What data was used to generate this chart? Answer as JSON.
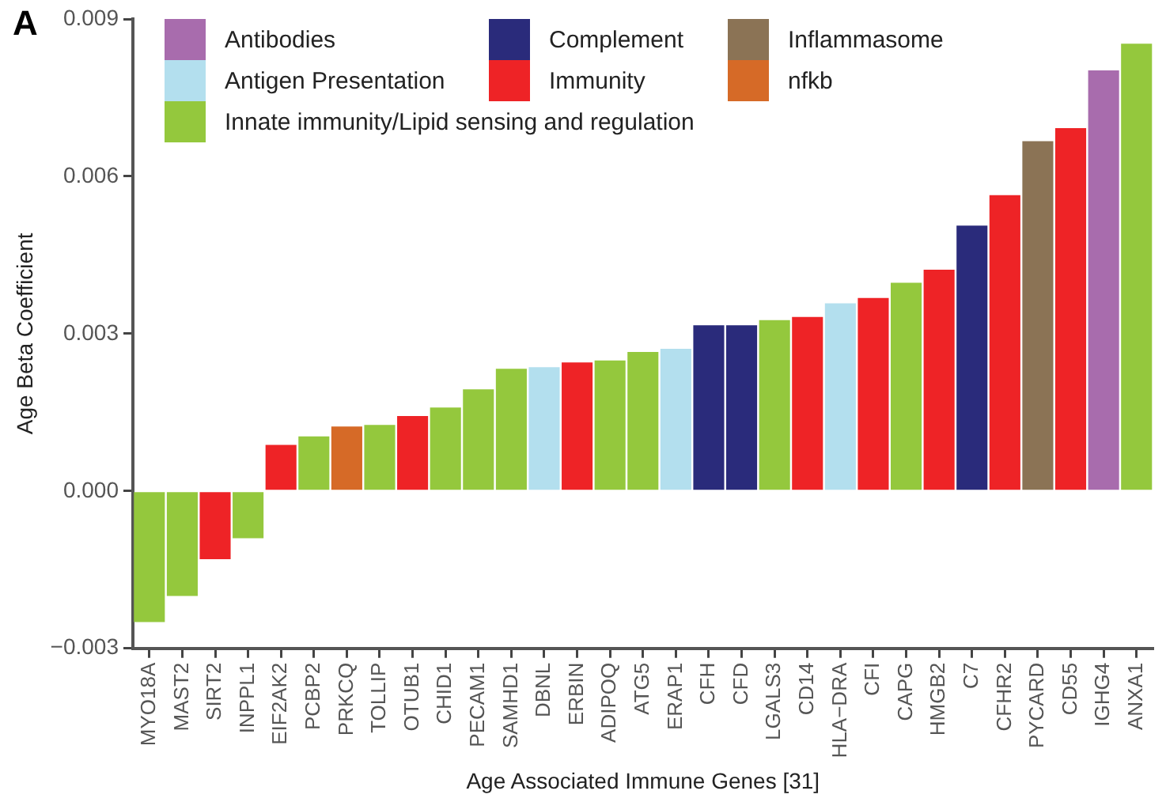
{
  "chart_data": {
    "type": "bar",
    "xlabel": "Age Associated Immune Genes [31]",
    "ylabel": "Age Beta Coefficient",
    "annotations": [
      "A"
    ],
    "categories": [
      "MYO18A",
      "MAST2",
      "SIRT2",
      "INPPL1",
      "EIF2AK2",
      "PCBP2",
      "PRKCQ",
      "TOLLIP",
      "OTUB1",
      "CHID1",
      "PECAM1",
      "SAMHD1",
      "DBNL",
      "ERBIN",
      "ADIPOQ",
      "ATG5",
      "ERAP1",
      "CFH",
      "CFD",
      "LGALS3",
      "CD14",
      "HLA−DRA",
      "CFI",
      "CAPG",
      "HMGB2",
      "C7",
      "CFHR2",
      "PYCARD",
      "CD55",
      "IGHG4",
      "ANXA1"
    ],
    "series": [
      {
        "name": "Antibodies",
        "color": "#a86cad",
        "values": [
          null,
          null,
          null,
          null,
          null,
          null,
          null,
          null,
          null,
          null,
          null,
          null,
          null,
          null,
          null,
          null,
          null,
          null,
          null,
          null,
          null,
          null,
          null,
          null,
          null,
          null,
          null,
          null,
          null,
          0.00802,
          null
        ]
      },
      {
        "name": "Antigen Presentation",
        "color": "#b3dfee",
        "values": [
          null,
          null,
          null,
          null,
          null,
          null,
          null,
          null,
          null,
          null,
          null,
          null,
          0.00236,
          null,
          null,
          null,
          0.00271,
          null,
          null,
          null,
          null,
          0.00358,
          null,
          null,
          null,
          null,
          null,
          null,
          null,
          null,
          null
        ]
      },
      {
        "name": "Innate immunity/Lipid sensing and regulation",
        "color": "#94c83d",
        "values": [
          -0.0025,
          -0.002,
          null,
          -0.0009,
          null,
          0.00104,
          null,
          0.00126,
          null,
          0.00159,
          0.00194,
          0.00233,
          null,
          null,
          0.00249,
          0.00265,
          null,
          null,
          null,
          0.00326,
          null,
          null,
          null,
          0.00397,
          null,
          null,
          null,
          null,
          null,
          null,
          0.00853
        ]
      },
      {
        "name": "Complement",
        "color": "#2a2b7b",
        "values": [
          null,
          null,
          null,
          null,
          null,
          null,
          null,
          null,
          null,
          null,
          null,
          null,
          null,
          null,
          null,
          null,
          null,
          0.00316,
          0.00316,
          null,
          null,
          null,
          null,
          null,
          null,
          0.00506,
          null,
          null,
          null,
          null,
          null
        ]
      },
      {
        "name": "Immunity",
        "color": "#ee2326",
        "values": [
          null,
          null,
          -0.0013,
          null,
          0.00088,
          null,
          null,
          null,
          0.00143,
          null,
          null,
          null,
          null,
          0.00245,
          null,
          null,
          null,
          null,
          null,
          null,
          0.00332,
          null,
          0.00368,
          null,
          0.00422,
          null,
          0.00564,
          null,
          0.00692,
          null,
          null
        ]
      },
      {
        "name": "Inflammasome",
        "color": "#8b7355",
        "values": [
          null,
          null,
          null,
          null,
          null,
          null,
          null,
          null,
          null,
          null,
          null,
          null,
          null,
          null,
          null,
          null,
          null,
          null,
          null,
          null,
          null,
          null,
          null,
          null,
          null,
          null,
          null,
          0.00667,
          null,
          null,
          null
        ]
      },
      {
        "name": "nfkb",
        "color": "#d66a27",
        "values": [
          null,
          null,
          null,
          null,
          null,
          null,
          0.00123,
          null,
          null,
          null,
          null,
          null,
          null,
          null,
          null,
          null,
          null,
          null,
          null,
          null,
          null,
          null,
          null,
          null,
          null,
          null,
          null,
          null,
          null,
          null,
          null
        ]
      }
    ],
    "ylim": [
      -0.003,
      0.009
    ],
    "yticks": [
      {
        "value": -0.003,
        "label": "−0.003"
      },
      {
        "value": 0,
        "label": "0.000"
      },
      {
        "value": 0.003,
        "label": "0.003"
      },
      {
        "value": 0.006,
        "label": "0.006"
      },
      {
        "value": 0.009,
        "label": "0.009"
      }
    ],
    "grid": false,
    "legend": "top left"
  }
}
